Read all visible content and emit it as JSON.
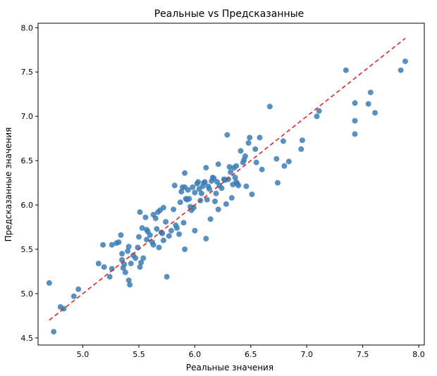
{
  "chart_data": {
    "type": "scatter",
    "title": "Реальные vs Предсказанные",
    "xlabel": "Реальные значения",
    "ylabel": "Предсказанные значения",
    "xlim": [
      4.6,
      8.05
    ],
    "ylim": [
      4.42,
      8.05
    ],
    "xticks": [
      "5.0",
      "5.5",
      "6.0",
      "6.5",
      "7.0",
      "7.5",
      "8.0"
    ],
    "yticks": [
      "4.5",
      "5.0",
      "5.5",
      "6.0",
      "6.5",
      "7.0",
      "7.5",
      "8.0"
    ],
    "grid": false,
    "point_color": "#3b7eb5",
    "reference_line": {
      "style": "dashed",
      "color": "#d62728",
      "from": [
        4.7,
        4.7
      ],
      "to": [
        7.88,
        7.88
      ]
    },
    "points": [
      [
        4.7,
        5.12
      ],
      [
        4.74,
        4.57
      ],
      [
        4.8,
        4.85
      ],
      [
        4.83,
        4.83
      ],
      [
        4.92,
        4.97
      ],
      [
        4.96,
        5.05
      ],
      [
        5.14,
        5.34
      ],
      [
        5.18,
        5.55
      ],
      [
        5.19,
        5.3
      ],
      [
        5.24,
        5.19
      ],
      [
        5.26,
        5.55
      ],
      [
        5.26,
        5.28
      ],
      [
        5.3,
        5.57
      ],
      [
        5.32,
        5.58
      ],
      [
        5.34,
        5.66
      ],
      [
        5.35,
        5.45
      ],
      [
        5.35,
        5.38
      ],
      [
        5.36,
        5.29
      ],
      [
        5.37,
        5.33
      ],
      [
        5.38,
        5.24
      ],
      [
        5.4,
        5.48
      ],
      [
        5.41,
        5.53
      ],
      [
        5.41,
        5.15
      ],
      [
        5.42,
        5.1
      ],
      [
        5.43,
        5.34
      ],
      [
        5.45,
        5.43
      ],
      [
        5.47,
        5.4
      ],
      [
        5.49,
        5.52
      ],
      [
        5.5,
        5.64
      ],
      [
        5.51,
        5.92
      ],
      [
        5.51,
        5.3
      ],
      [
        5.52,
        5.35
      ],
      [
        5.53,
        5.74
      ],
      [
        5.54,
        5.4
      ],
      [
        5.56,
        5.86
      ],
      [
        5.57,
        5.61
      ],
      [
        5.57,
        5.72
      ],
      [
        5.58,
        5.7
      ],
      [
        5.6,
        5.66
      ],
      [
        5.62,
        5.58
      ],
      [
        5.63,
        5.89
      ],
      [
        5.63,
        5.55
      ],
      [
        5.65,
        5.85
      ],
      [
        5.66,
        5.73
      ],
      [
        5.67,
        5.92
      ],
      [
        5.68,
        5.52
      ],
      [
        5.69,
        5.94
      ],
      [
        5.7,
        5.69
      ],
      [
        5.71,
        5.68
      ],
      [
        5.72,
        5.97
      ],
      [
        5.72,
        5.6
      ],
      [
        5.74,
        5.81
      ],
      [
        5.75,
        5.19
      ],
      [
        5.77,
        5.65
      ],
      [
        5.79,
        5.71
      ],
      [
        5.81,
        5.95
      ],
      [
        5.82,
        6.22
      ],
      [
        5.83,
        5.77
      ],
      [
        5.84,
        5.74
      ],
      [
        5.86,
        5.67
      ],
      [
        5.87,
        6.03
      ],
      [
        5.88,
        6.15
      ],
      [
        5.89,
        6.2
      ],
      [
        5.9,
        5.8
      ],
      [
        5.91,
        6.36
      ],
      [
        5.91,
        6.2
      ],
      [
        5.91,
        5.5
      ],
      [
        5.92,
        6.07
      ],
      [
        5.93,
        6.06
      ],
      [
        5.94,
        6.17
      ],
      [
        5.95,
        6.07
      ],
      [
        5.96,
        5.98
      ],
      [
        5.97,
        5.94
      ],
      [
        5.98,
        6.2
      ],
      [
        5.99,
        5.97
      ],
      [
        6.0,
        6.14
      ],
      [
        6.0,
        5.71
      ],
      [
        6.02,
        6.24
      ],
      [
        6.03,
        6.26
      ],
      [
        6.04,
        6.18
      ],
      [
        6.05,
        6.05
      ],
      [
        6.06,
        6.13
      ],
      [
        6.07,
        6.21
      ],
      [
        6.08,
        6.25
      ],
      [
        6.09,
        6.26
      ],
      [
        6.1,
        6.42
      ],
      [
        6.1,
        5.62
      ],
      [
        6.11,
        6.06
      ],
      [
        6.12,
        6.21
      ],
      [
        6.13,
        6.18
      ],
      [
        6.14,
        5.84
      ],
      [
        6.15,
        6.27
      ],
      [
        6.16,
        6.31
      ],
      [
        6.17,
        6.3
      ],
      [
        6.18,
        6.04
      ],
      [
        6.19,
        6.13
      ],
      [
        6.2,
        6.26
      ],
      [
        6.21,
        6.46
      ],
      [
        6.21,
        5.95
      ],
      [
        6.22,
        6.22
      ],
      [
        6.24,
        6.19
      ],
      [
        6.26,
        6.29
      ],
      [
        6.27,
        6.28
      ],
      [
        6.28,
        6.01
      ],
      [
        6.29,
        6.79
      ],
      [
        6.3,
        6.29
      ],
      [
        6.31,
        6.43
      ],
      [
        6.32,
        6.37
      ],
      [
        6.33,
        6.08
      ],
      [
        6.34,
        6.23
      ],
      [
        6.35,
        6.42
      ],
      [
        6.36,
        6.31
      ],
      [
        6.37,
        6.44
      ],
      [
        6.37,
        6.26
      ],
      [
        6.38,
        6.24
      ],
      [
        6.39,
        6.22
      ],
      [
        6.41,
        6.61
      ],
      [
        6.43,
        6.48
      ],
      [
        6.44,
        6.51
      ],
      [
        6.45,
        6.55
      ],
      [
        6.46,
        6.21
      ],
      [
        6.48,
        6.7
      ],
      [
        6.49,
        6.76
      ],
      [
        6.51,
        6.12
      ],
      [
        6.54,
        6.63
      ],
      [
        6.55,
        6.48
      ],
      [
        6.58,
        6.76
      ],
      [
        6.6,
        6.4
      ],
      [
        6.67,
        7.11
      ],
      [
        6.73,
        6.52
      ],
      [
        6.74,
        6.25
      ],
      [
        6.79,
        6.72
      ],
      [
        6.8,
        6.44
      ],
      [
        6.84,
        6.49
      ],
      [
        6.95,
        6.63
      ],
      [
        6.96,
        6.73
      ],
      [
        7.09,
        7.0
      ],
      [
        7.11,
        7.06
      ],
      [
        7.35,
        7.52
      ],
      [
        7.43,
        7.15
      ],
      [
        7.43,
        6.95
      ],
      [
        7.43,
        6.8
      ],
      [
        7.55,
        7.14
      ],
      [
        7.57,
        7.27
      ],
      [
        7.61,
        7.04
      ],
      [
        7.84,
        7.52
      ],
      [
        7.88,
        7.62
      ]
    ]
  }
}
